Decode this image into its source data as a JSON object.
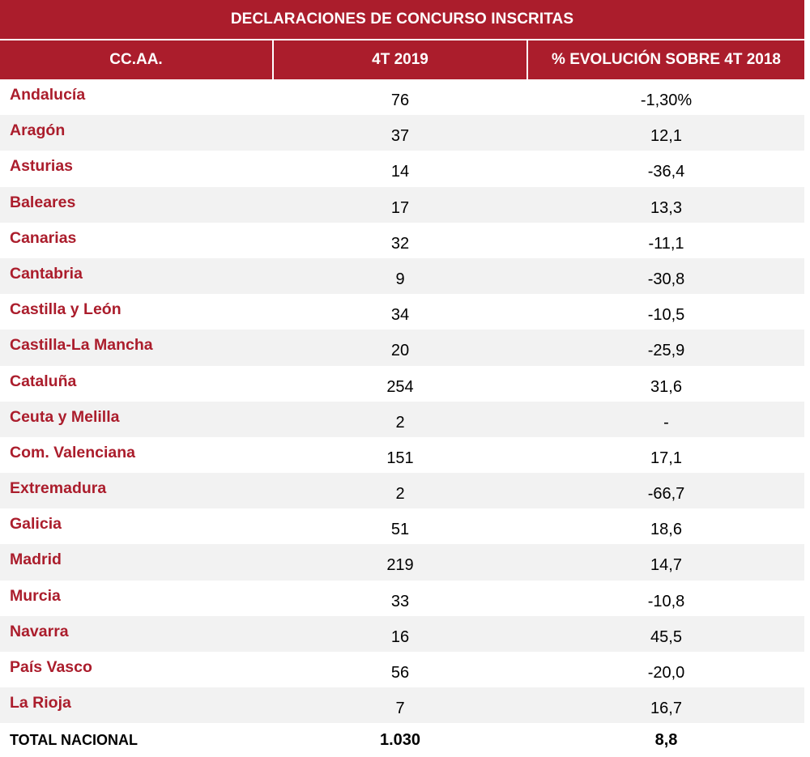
{
  "table": {
    "title": "DECLARACIONES DE CONCURSO INSCRITAS",
    "headers": [
      "CC.AA.",
      "4T 2019",
      "% EVOLUCIÓN SOBRE 4T 2018"
    ],
    "rows": [
      {
        "region": "Andalucía",
        "value": "76",
        "evolution": "-1,30%"
      },
      {
        "region": "Aragón",
        "value": "37",
        "evolution": "12,1"
      },
      {
        "region": "Asturias",
        "value": "14",
        "evolution": "-36,4"
      },
      {
        "region": "Baleares",
        "value": "17",
        "evolution": "13,3"
      },
      {
        "region": "Canarias",
        "value": "32",
        "evolution": "-11,1"
      },
      {
        "region": "Cantabria",
        "value": "9",
        "evolution": "-30,8"
      },
      {
        "region": "Castilla y León",
        "value": "34",
        "evolution": "-10,5"
      },
      {
        "region": "Castilla-La Mancha",
        "value": "20",
        "evolution": "-25,9"
      },
      {
        "region": "Cataluña",
        "value": "254",
        "evolution": "31,6"
      },
      {
        "region": "Ceuta y Melilla",
        "value": "2",
        "evolution": "-"
      },
      {
        "region": "Com. Valenciana",
        "value": "151",
        "evolution": "17,1"
      },
      {
        "region": "Extremadura",
        "value": "2",
        "evolution": "-66,7"
      },
      {
        "region": "Galicia",
        "value": "51",
        "evolution": "18,6"
      },
      {
        "region": "Madrid",
        "value": "219",
        "evolution": "14,7"
      },
      {
        "region": "Murcia",
        "value": "33",
        "evolution": "-10,8"
      },
      {
        "region": "Navarra",
        "value": "16",
        "evolution": "45,5"
      },
      {
        "region": "País Vasco",
        "value": "56",
        "evolution": "-20,0"
      },
      {
        "region": "La Rioja",
        "value": "7",
        "evolution": "16,7"
      }
    ],
    "total": {
      "label": "TOTAL NACIONAL",
      "value": "1.030",
      "evolution": "8,8"
    }
  },
  "colors": {
    "header_bg": "#ab1d2c",
    "region_text": "#ab1d2c",
    "stripe": "#f2f2f2"
  }
}
